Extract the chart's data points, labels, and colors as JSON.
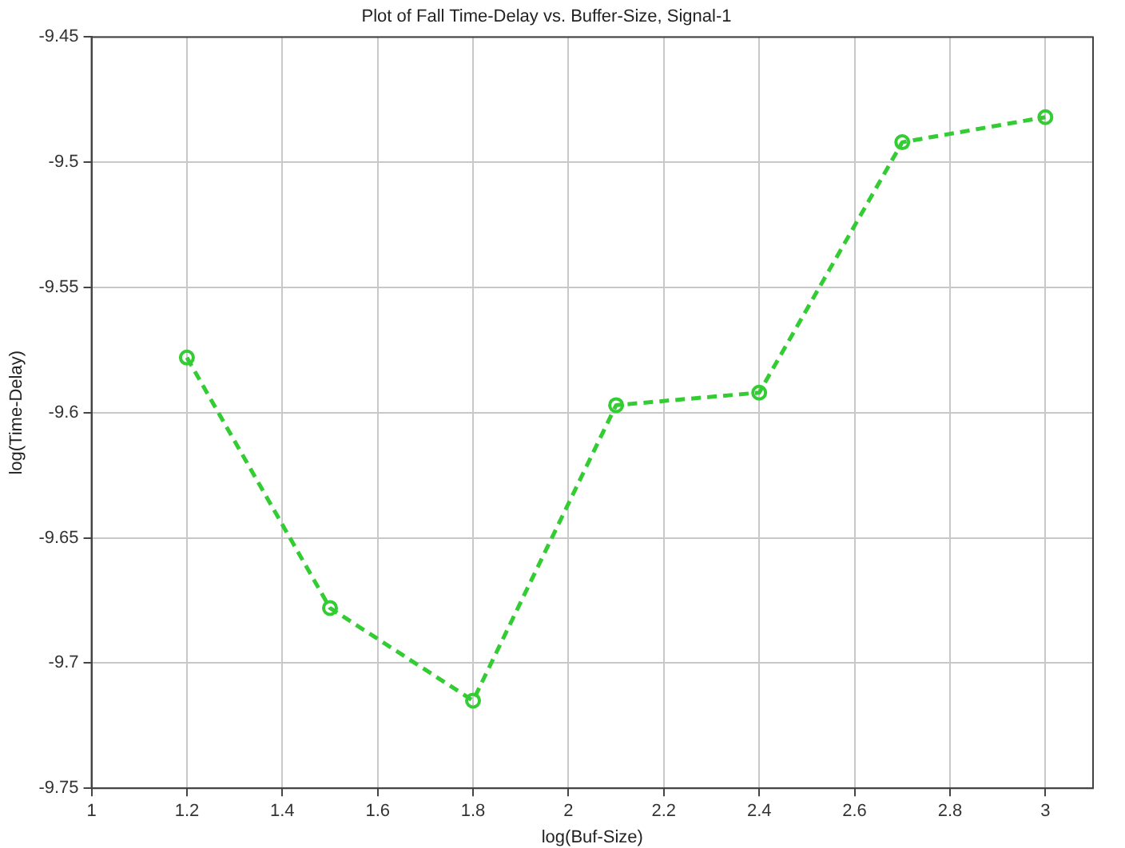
{
  "chart_data": {
    "type": "line",
    "title": "Plot of Fall Time-Delay vs. Buffer-Size, Signal-1",
    "xlabel": "log(Buf-Size)",
    "ylabel": "log(Time-Delay)",
    "x": [
      1.2,
      1.5,
      1.8,
      2.1,
      2.4,
      2.7,
      3.0
    ],
    "series": [
      {
        "color": "#33cc33",
        "values": [
          -9.578,
          -9.678,
          -9.715,
          -9.597,
          -9.592,
          -9.492,
          -9.482
        ]
      }
    ],
    "xlim": [
      1,
      3.1
    ],
    "xticks": [
      1,
      1.2,
      1.4,
      1.6,
      1.8,
      2,
      2.2,
      2.4,
      2.6,
      2.8,
      3
    ],
    "ylim": [
      -9.75,
      -9.45
    ],
    "yticks": [
      -9.75,
      -9.7,
      -9.65,
      -9.6,
      -9.55,
      -9.5,
      -9.45
    ],
    "grid": true,
    "legend": false,
    "marker": "circle",
    "line_style": "dashed"
  }
}
